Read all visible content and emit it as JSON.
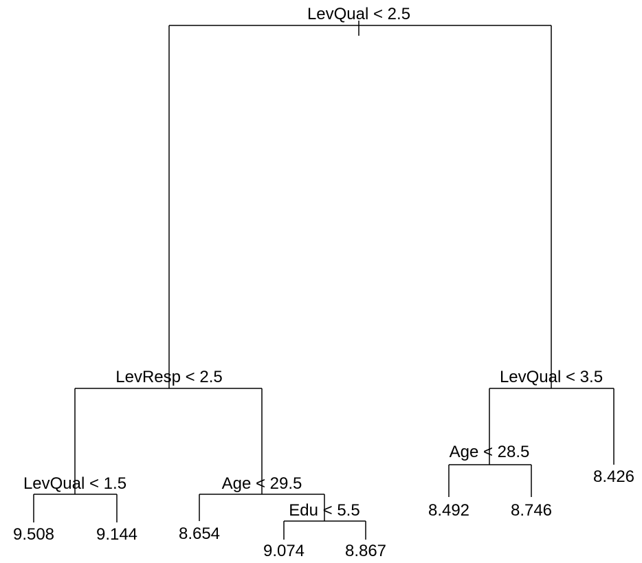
{
  "nodes": [
    {
      "label": "LevQual < 2.5"
    },
    {
      "label": "LevResp < 2.5"
    },
    {
      "label": "LevQual < 3.5"
    },
    {
      "label": "LevQual < 1.5"
    },
    {
      "label": "Age < 29.5"
    },
    {
      "label": "9.508"
    },
    {
      "label": "9.144"
    },
    {
      "label": "8.654"
    },
    {
      "label": "Edu < 5.5"
    },
    {
      "label": "9.074"
    },
    {
      "label": "8.867"
    },
    {
      "label": "Age < 28.5"
    },
    {
      "label": "8.426"
    },
    {
      "label": "8.492"
    },
    {
      "label": "8.746"
    }
  ]
}
